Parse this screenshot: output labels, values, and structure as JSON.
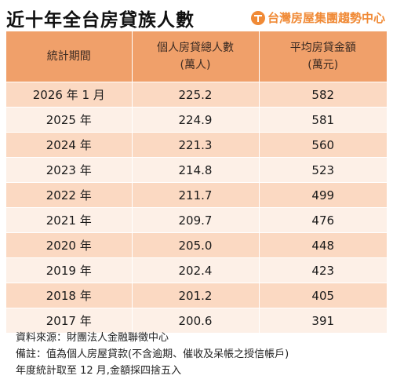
{
  "title": "近十年全台房貸族人數",
  "brand": {
    "name": "台灣房屋集團趨勢中心",
    "icon": "brand-logo-icon",
    "color": "#f08a36"
  },
  "table": {
    "headers": [
      {
        "line1": "統計期間",
        "line2": ""
      },
      {
        "line1": "個人房貸總人數",
        "line2": "(萬人)"
      },
      {
        "line1": "平均房貸金額",
        "line2": "(萬元)"
      }
    ],
    "rows": [
      {
        "period": "2026 年 1 月",
        "borrowers": "225.2",
        "avg_amount": "582"
      },
      {
        "period": "2025 年",
        "borrowers": "224.9",
        "avg_amount": "581"
      },
      {
        "period": "2024 年",
        "borrowers": "221.3",
        "avg_amount": "560"
      },
      {
        "period": "2023 年",
        "borrowers": "214.8",
        "avg_amount": "523"
      },
      {
        "period": "2022 年",
        "borrowers": "211.7",
        "avg_amount": "499"
      },
      {
        "period": "2021 年",
        "borrowers": "209.7",
        "avg_amount": "476"
      },
      {
        "period": "2020 年",
        "borrowers": "205.0",
        "avg_amount": "448"
      },
      {
        "period": "2019 年",
        "borrowers": "202.4",
        "avg_amount": "423"
      },
      {
        "period": "2018 年",
        "borrowers": "201.2",
        "avg_amount": "405"
      },
      {
        "period": "2017 年",
        "borrowers": "200.6",
        "avg_amount": "391"
      }
    ],
    "colors": {
      "header": "#f0a06a",
      "row_dark": "#fbd9c2",
      "row_light": "#fdf0e7"
    }
  },
  "notes": {
    "source": "資料來源：財團法人金融聯徵中心",
    "remark": "備註：值為個人房屋貸款(不含逾期、催收及呆帳之授信帳戶)",
    "method": "年度統計取至 12 月,金額採四捨五入"
  }
}
